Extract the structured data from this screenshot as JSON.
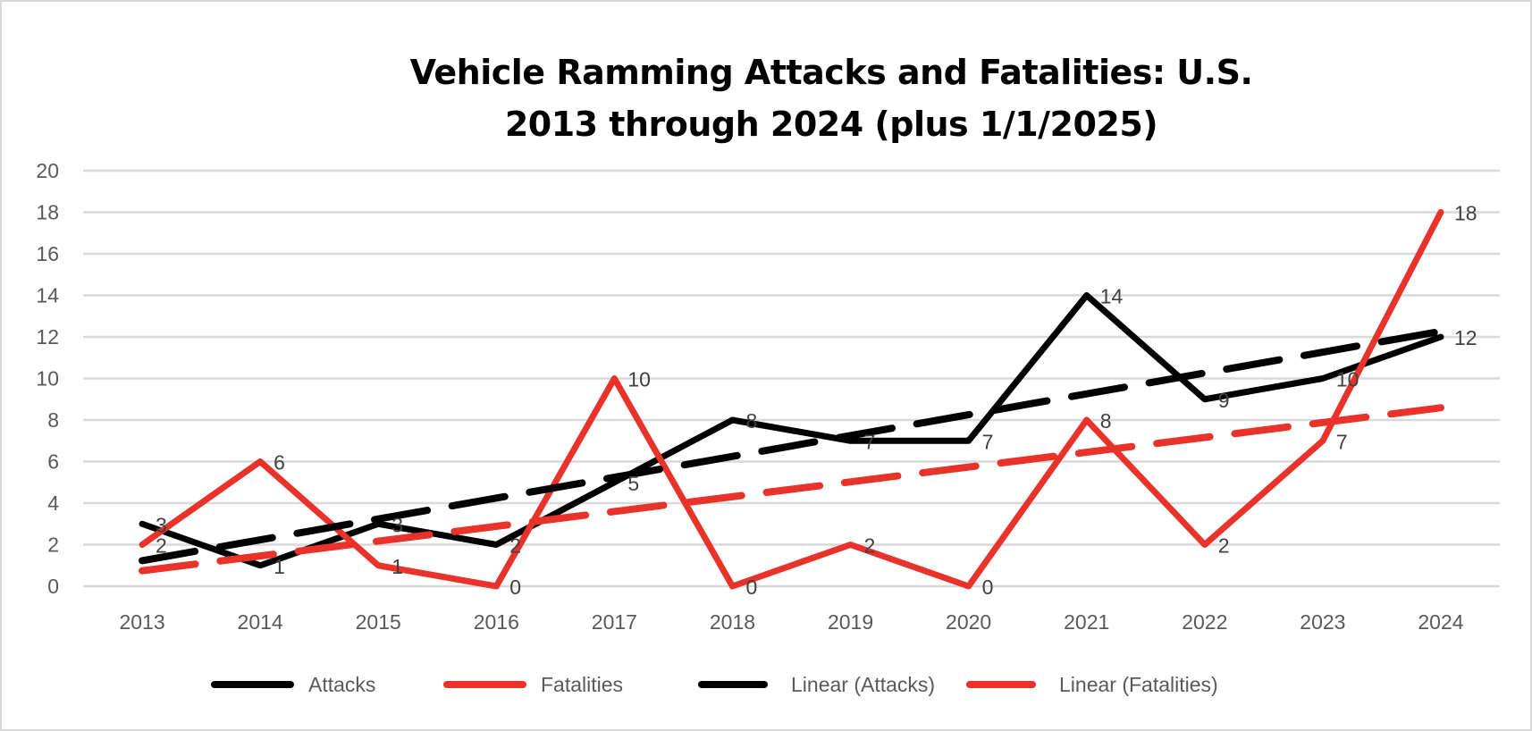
{
  "chart_data": {
    "type": "line",
    "title_lines": [
      "Vehicle Ramming Attacks and Fatalities:  U.S.",
      "2013 through 2024 (plus 1/1/2025)"
    ],
    "categories": [
      "2013",
      "2014",
      "2015",
      "2016",
      "2017",
      "2018",
      "2019",
      "2020",
      "2021",
      "2022",
      "2023",
      "2024"
    ],
    "ylim": [
      0,
      20
    ],
    "yticks": [
      "0",
      "2",
      "4",
      "6",
      "8",
      "10",
      "12",
      "14",
      "16",
      "18",
      "20"
    ],
    "grid": true,
    "legend_position": "bottom",
    "series": [
      {
        "name": "Attacks",
        "color": "#000000",
        "values": [
          3,
          1,
          3,
          2,
          5,
          8,
          7,
          7,
          14,
          9,
          10,
          12
        ]
      },
      {
        "name": "Fatalities",
        "color": "#E8322A",
        "values": [
          2,
          6,
          1,
          0,
          10,
          0,
          2,
          0,
          8,
          2,
          7,
          18
        ]
      }
    ],
    "trendlines": [
      {
        "name": "Linear (Attacks)",
        "of": "Attacks",
        "type": "linear",
        "color": "#000000",
        "style": "dashed"
      },
      {
        "name": "Linear (Fatalities)",
        "of": "Fatalities",
        "type": "linear",
        "color": "#E8322A",
        "style": "dashed"
      }
    ]
  }
}
